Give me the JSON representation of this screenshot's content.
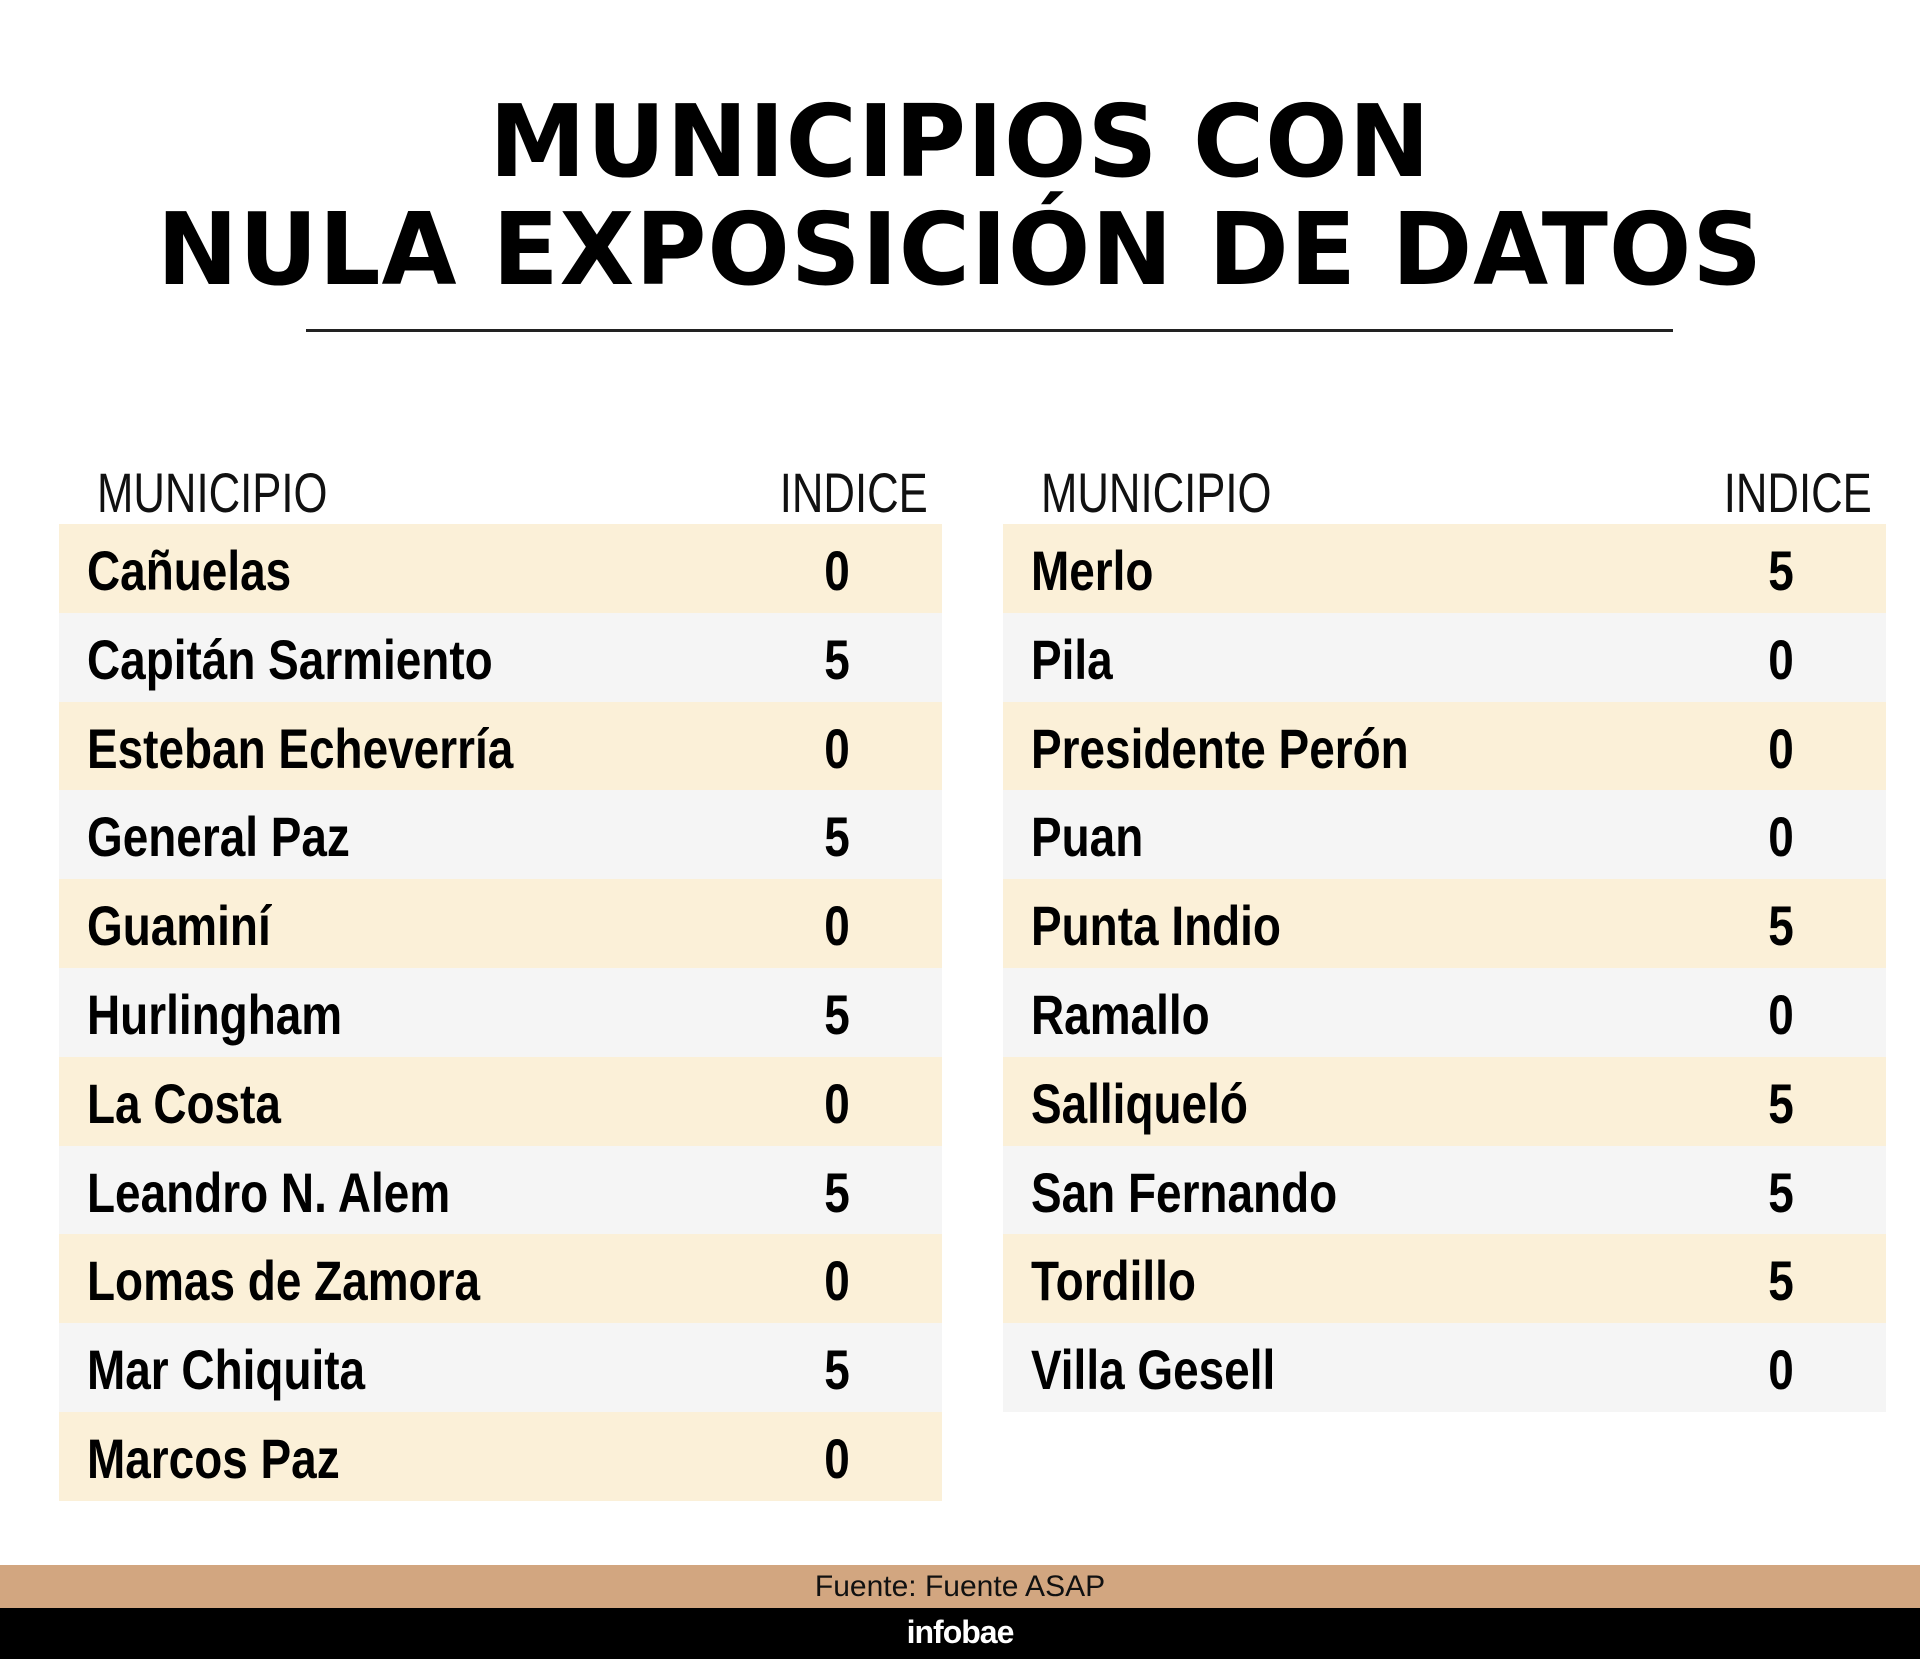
{
  "title": {
    "line1": "MUNICIPIOS CON",
    "line2": "NULA EXPOSICIÓN DE DATOS"
  },
  "tables": {
    "left": {
      "headers": {
        "municipio": "MUNICIPIO",
        "indice": "INDICE"
      },
      "rows": [
        {
          "name": "Cañuelas",
          "value": "0"
        },
        {
          "name": "Capitán Sarmiento",
          "value": "5"
        },
        {
          "name": "Esteban Echeverría",
          "value": "0"
        },
        {
          "name": "General Paz",
          "value": "5"
        },
        {
          "name": "Guaminí",
          "value": "0"
        },
        {
          "name": "Hurlingham",
          "value": "5"
        },
        {
          "name": "La Costa",
          "value": "0"
        },
        {
          "name": "Leandro N. Alem",
          "value": "5"
        },
        {
          "name": "Lomas de Zamora",
          "value": "0"
        },
        {
          "name": "Mar Chiquita",
          "value": "5"
        },
        {
          "name": "Marcos Paz",
          "value": "0"
        }
      ]
    },
    "right": {
      "headers": {
        "municipio": "MUNICIPIO",
        "indice": "INDICE"
      },
      "rows": [
        {
          "name": "Merlo",
          "value": "5"
        },
        {
          "name": "Pila",
          "value": "0"
        },
        {
          "name": "Presidente Perón",
          "value": "0"
        },
        {
          "name": "Puan",
          "value": "0"
        },
        {
          "name": "Punta Indio",
          "value": "5"
        },
        {
          "name": "Ramallo",
          "value": "0"
        },
        {
          "name": "Salliqueló",
          "value": "5"
        },
        {
          "name": "San Fernando",
          "value": "5"
        },
        {
          "name": "Tordillo",
          "value": "5"
        },
        {
          "name": "Villa Gesell",
          "value": "0"
        }
      ]
    }
  },
  "footer": {
    "source": "Fuente: Fuente ASAP",
    "brand": "infobae"
  },
  "colors": {
    "row_odd": "#fbf0d8",
    "row_even": "#f5f5f5",
    "source_band": "#d2a680",
    "brand_band": "#000000"
  }
}
